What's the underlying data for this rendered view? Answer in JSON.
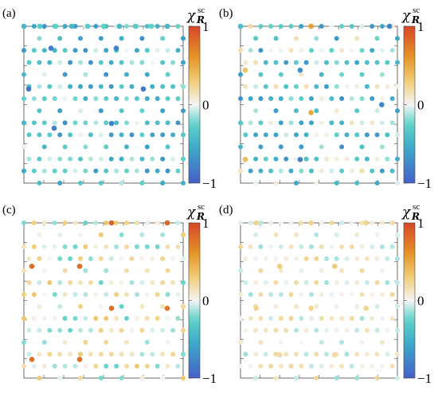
{
  "chart_data": [
    {
      "type": "heatmap",
      "panel_label": "(a)",
      "colorbar": {
        "symbol": "χ",
        "subscript": "R",
        "superscript": "sc",
        "range": [
          -1,
          1
        ],
        "ticks": [
          "1",
          "0",
          "−1"
        ]
      },
      "description_values": "Lattice of sites with mostly negative values (cyan/teal); deeper blue on several sites",
      "sites": [
        {
          "x": 0.0,
          "y": 0.0,
          "v": -0.45
        },
        {
          "x": 0.1,
          "y": 0.0,
          "v": -0.3
        },
        {
          "x": 0.2,
          "y": 0.0,
          "v": -0.25
        },
        {
          "x": 0.3,
          "y": 0.0,
          "v": -0.45
        },
        {
          "x": 0.4,
          "y": 0.0,
          "v": -0.3
        },
        {
          "x": 0.5,
          "y": 0.0,
          "v": -0.25
        },
        {
          "x": 0.6,
          "y": 0.0,
          "v": -0.45
        },
        {
          "x": 0.7,
          "y": 0.0,
          "v": -0.3
        },
        {
          "x": 0.8,
          "y": 0.0,
          "v": -0.25
        },
        {
          "x": 0.9,
          "y": 0.0,
          "v": -0.45
        },
        {
          "x": 0.17,
          "y": 0.14,
          "v": -0.8
        },
        {
          "x": 0.58,
          "y": 0.14,
          "v": -0.8
        },
        {
          "x": 0.03,
          "y": 0.4,
          "v": -0.85
        },
        {
          "x": 0.75,
          "y": 0.4,
          "v": -0.85
        },
        {
          "x": 0.19,
          "y": 0.65,
          "v": -0.8
        },
        {
          "x": 0.55,
          "y": 0.62,
          "v": -0.8
        }
      ]
    },
    {
      "type": "heatmap",
      "panel_label": "(b)",
      "colorbar": {
        "symbol": "χ",
        "subscript": "R",
        "superscript": "sc",
        "range": [
          -1,
          1
        ],
        "ticks": [
          "1",
          "0",
          "−1"
        ]
      },
      "description_values": "Mostly negative (cyan/blue) sites with a few positive (orange) sites",
      "sites": [
        {
          "x": 0.0,
          "y": 0.0,
          "v": -0.4
        },
        {
          "x": 0.45,
          "y": 0.0,
          "v": 0.55
        },
        {
          "x": 0.95,
          "y": 0.0,
          "v": -0.75
        },
        {
          "x": 0.03,
          "y": 0.28,
          "v": 0.35
        },
        {
          "x": 0.38,
          "y": 0.28,
          "v": -0.7
        },
        {
          "x": 0.45,
          "y": 0.55,
          "v": 0.5
        },
        {
          "x": 0.9,
          "y": 0.5,
          "v": -0.75
        },
        {
          "x": 0.03,
          "y": 0.85,
          "v": 0.4
        },
        {
          "x": 0.38,
          "y": 0.85,
          "v": -0.8
        }
      ]
    },
    {
      "type": "heatmap",
      "panel_label": "(c)",
      "colorbar": {
        "symbol": "χ",
        "subscript": "R",
        "superscript": "sc",
        "range": [
          -1,
          1
        ],
        "ticks": [
          "1",
          "0",
          "−1"
        ]
      },
      "description_values": "Mixed weak cyan sites with strong positive (orange/red) clusters",
      "sites": [
        {
          "x": 0.55,
          "y": 0.0,
          "v": 0.85
        },
        {
          "x": 0.9,
          "y": 0.0,
          "v": 0.85
        },
        {
          "x": 0.05,
          "y": 0.28,
          "v": 0.8
        },
        {
          "x": 0.35,
          "y": 0.28,
          "v": 0.8
        },
        {
          "x": 0.55,
          "y": 0.55,
          "v": 0.8
        },
        {
          "x": 0.9,
          "y": 0.55,
          "v": 0.75
        },
        {
          "x": 0.05,
          "y": 0.88,
          "v": 0.8
        },
        {
          "x": 0.35,
          "y": 0.88,
          "v": 0.8
        }
      ]
    },
    {
      "type": "heatmap",
      "panel_label": "(d)",
      "colorbar": {
        "symbol": "χ",
        "subscript": "R",
        "superscript": "sc",
        "range": [
          -1,
          1
        ],
        "ticks": [
          "1",
          "0",
          "−1"
        ]
      },
      "description_values": "Mostly faint sites with weak positive (pale orange) values",
      "sites": [
        {
          "x": 0.1,
          "y": 0.0,
          "v": 0.25
        },
        {
          "x": 0.45,
          "y": 0.0,
          "v": 0.25
        },
        {
          "x": 0.8,
          "y": 0.0,
          "v": 0.25
        },
        {
          "x": 0.25,
          "y": 0.28,
          "v": 0.3
        },
        {
          "x": 0.6,
          "y": 0.28,
          "v": 0.3
        },
        {
          "x": 0.1,
          "y": 0.55,
          "v": 0.25
        },
        {
          "x": 0.45,
          "y": 0.55,
          "v": 0.25
        },
        {
          "x": 0.8,
          "y": 0.55,
          "v": 0.25
        },
        {
          "x": 0.25,
          "y": 0.85,
          "v": 0.2
        },
        {
          "x": 0.6,
          "y": 0.85,
          "v": 0.2
        }
      ]
    }
  ]
}
